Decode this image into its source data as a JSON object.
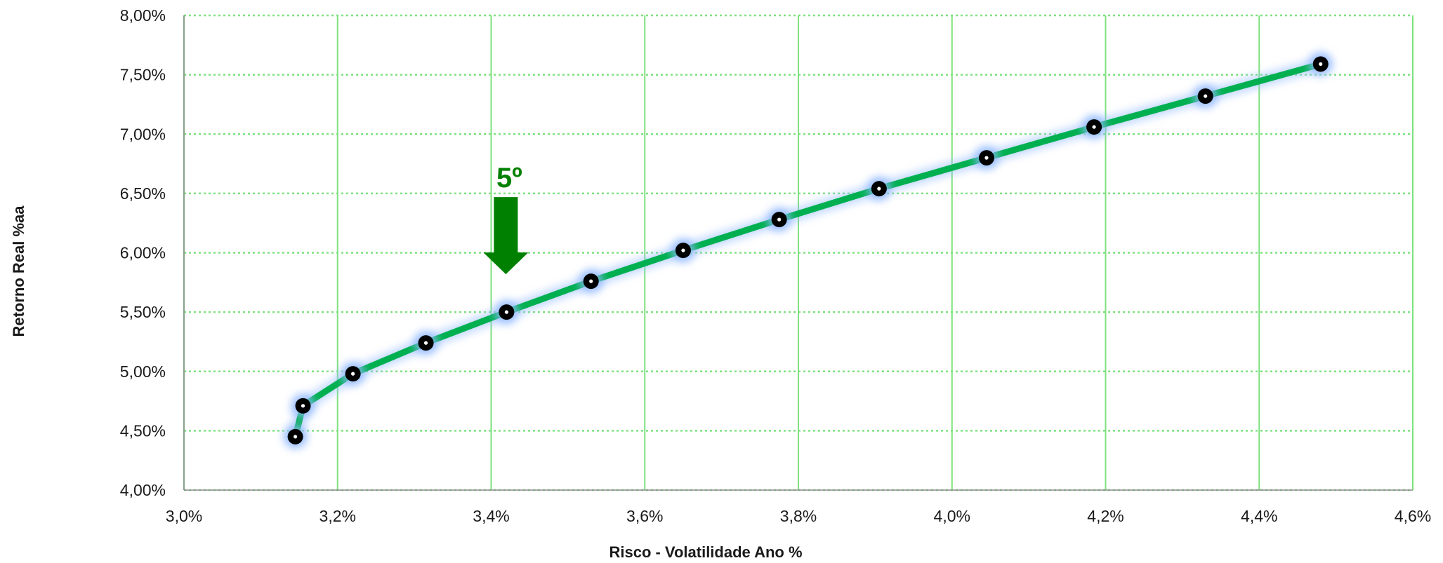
{
  "chart_data": {
    "type": "line",
    "title": "",
    "xlabel": "Risco - Volatilidade Ano %",
    "ylabel": "Retorno Real %aa",
    "xlim": [
      3.0,
      4.6
    ],
    "ylim": [
      4.0,
      8.0
    ],
    "x_ticks": [
      "3,0%",
      "3,2%",
      "3,4%",
      "3,6%",
      "3,8%",
      "4,0%",
      "4,2%",
      "4,4%",
      "4,6%"
    ],
    "y_ticks": [
      "8,00%",
      "7,50%",
      "7,00%",
      "6,50%",
      "6,00%",
      "5,50%",
      "5,00%",
      "4,50%",
      "4,00%"
    ],
    "grid": true,
    "series": [
      {
        "points": [
          {
            "x": 3.145,
            "y": 4.45
          },
          {
            "x": 3.155,
            "y": 4.71
          },
          {
            "x": 3.22,
            "y": 4.98
          },
          {
            "x": 3.315,
            "y": 5.24
          },
          {
            "x": 3.42,
            "y": 5.5
          },
          {
            "x": 3.53,
            "y": 5.76
          },
          {
            "x": 3.65,
            "y": 6.02
          },
          {
            "x": 3.775,
            "y": 6.28
          },
          {
            "x": 3.905,
            "y": 6.54
          },
          {
            "x": 4.045,
            "y": 6.8
          },
          {
            "x": 4.185,
            "y": 7.06
          },
          {
            "x": 4.33,
            "y": 7.32
          },
          {
            "x": 4.48,
            "y": 7.59
          }
        ]
      }
    ],
    "annotation": {
      "text": "5º",
      "target_index": 4
    },
    "colors": {
      "line": "#00b050",
      "marker": "#000000",
      "marker_glow": "#8fb8ff",
      "grid": "#7ee27e",
      "arrow": "#008000"
    }
  }
}
